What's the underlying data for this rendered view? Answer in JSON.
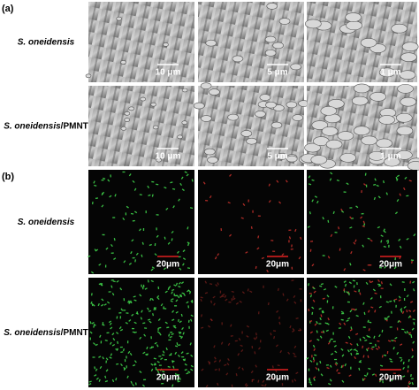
{
  "panels": [
    {
      "label": "(a)",
      "rows": [
        {
          "species": "S. oneidensis",
          "scale_bars": [
            "10 μm",
            "5 μm",
            "1 μm"
          ]
        },
        {
          "species": "S. oneidensis",
          "suffix": "/PMNT",
          "scale_bars": [
            "10 μm",
            "5 μm",
            "1 μm"
          ]
        }
      ]
    },
    {
      "label": "(b)",
      "rows": [
        {
          "species": "S. oneidensis",
          "scale_bars": [
            "20μm",
            "20μm",
            "20μm"
          ]
        },
        {
          "species": "S. oneidensis",
          "suffix": "/PMNT",
          "scale_bars": [
            "20μm",
            "20μm",
            "20μm"
          ]
        }
      ]
    }
  ]
}
